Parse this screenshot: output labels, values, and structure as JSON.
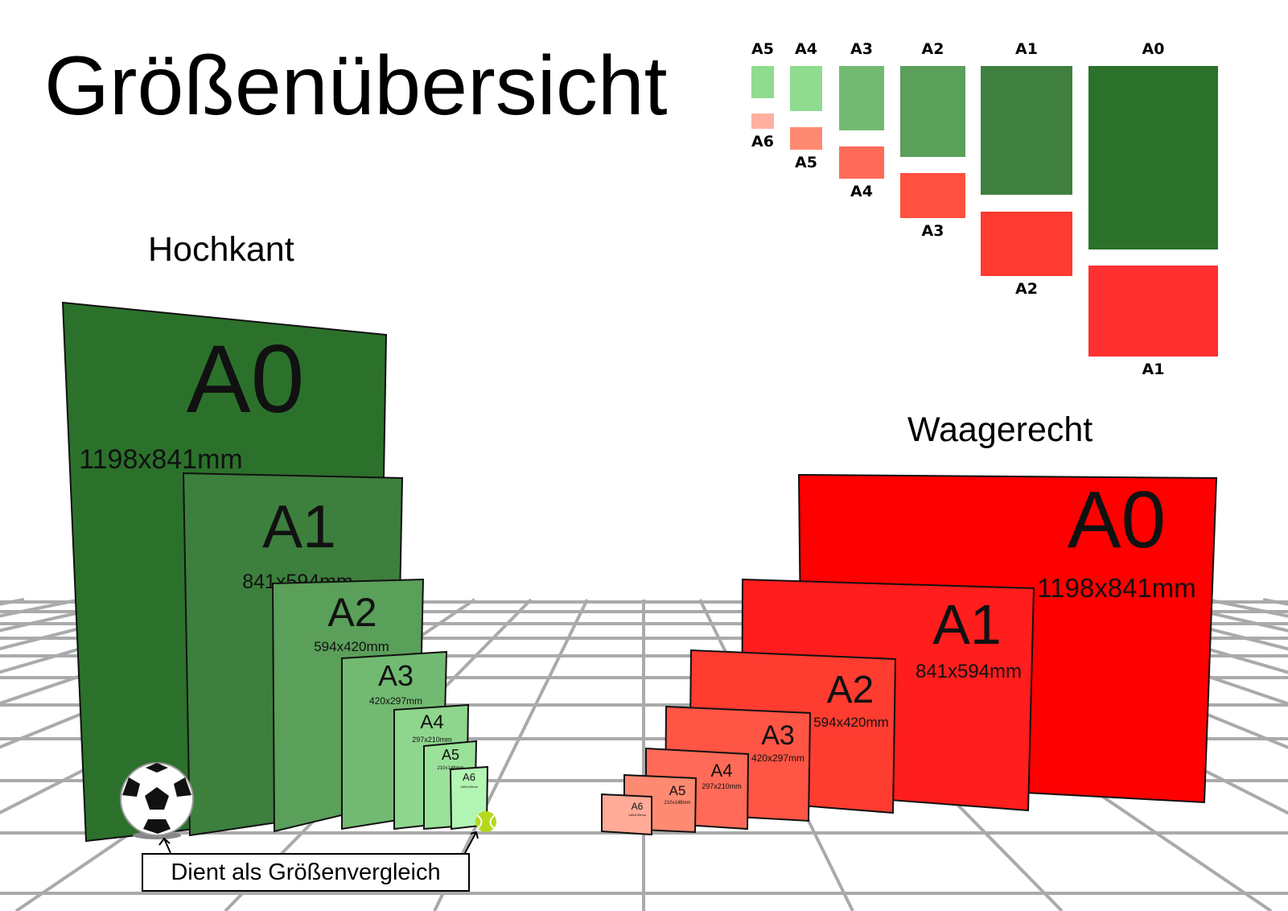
{
  "title": "Größenübersicht",
  "portrait_label": "Hochkant",
  "landscape_label": "Waagerecht",
  "comparison_note": "Dient als Größenvergleich",
  "colors": {
    "green": [
      "#2b712b",
      "#3d7f3d",
      "#5a9f5a",
      "#72ba72",
      "#8ed68e",
      "#9ae19a",
      "#b3f5b3"
    ],
    "red": [
      "#ff0000",
      "#ff1d1d",
      "#ff3c30",
      "#ff5545",
      "#ff6b58",
      "#ff8a72",
      "#ffab98"
    ]
  },
  "portrait": [
    {
      "name": "A0",
      "size": "1198x841mm"
    },
    {
      "name": "A1",
      "size": "841x594mm"
    },
    {
      "name": "A2",
      "size": "594x420mm"
    },
    {
      "name": "A3",
      "size": "420x297mm"
    },
    {
      "name": "A4",
      "size": "297x210mm"
    },
    {
      "name": "A5",
      "size": "210x148mm"
    },
    {
      "name": "A6",
      "size": "148x105mm"
    }
  ],
  "landscape": [
    {
      "name": "A0",
      "size": "1198x841mm"
    },
    {
      "name": "A1",
      "size": "841x594mm"
    },
    {
      "name": "A2",
      "size": "594x420mm"
    },
    {
      "name": "A3",
      "size": "420x297mm"
    },
    {
      "name": "A4",
      "size": "297x210mm"
    },
    {
      "name": "A5",
      "size": "210x148mm"
    },
    {
      "name": "A6",
      "size": "148x105mm"
    }
  ],
  "overview": [
    {
      "top": "A5",
      "bottom": "A6"
    },
    {
      "top": "A4",
      "bottom": "A5"
    },
    {
      "top": "A3",
      "bottom": "A4"
    },
    {
      "top": "A2",
      "bottom": "A3"
    },
    {
      "top": "A1",
      "bottom": "A2"
    },
    {
      "top": "A0",
      "bottom": "A1"
    }
  ],
  "icons": [
    "soccer-ball-icon",
    "tennis-ball-icon",
    "arrow-icon"
  ]
}
